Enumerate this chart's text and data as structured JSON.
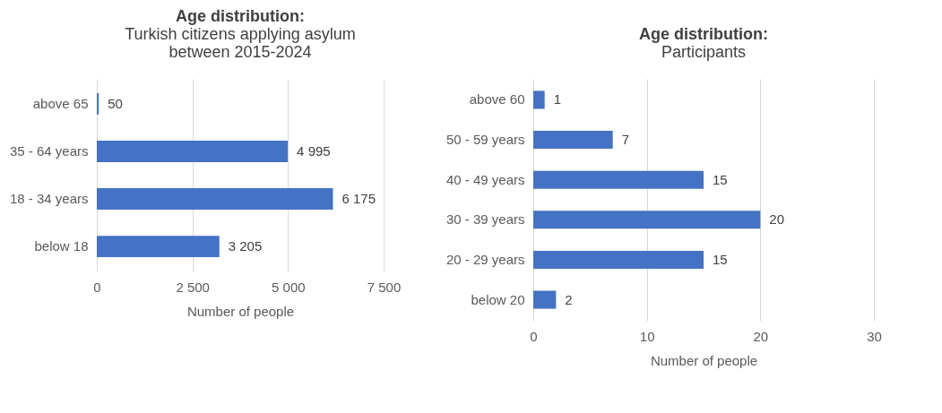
{
  "chart_data": [
    {
      "type": "bar",
      "orientation": "horizontal",
      "title": "Age distribution:",
      "subtitle": "Turkish citizens applying asylum between 2015-2024",
      "xlabel": "Number of people",
      "categories": [
        "above 65",
        "35 - 64 years",
        "18 - 34 years",
        "below 18"
      ],
      "values": [
        50,
        4995,
        6175,
        3205
      ],
      "value_labels": [
        "50",
        "4 995",
        "6 175",
        "3 205"
      ],
      "color": "#4472c4",
      "xlim": [
        0,
        7500
      ],
      "xticks": [
        0,
        {
          "value": 2500,
          "label": "2 500"
        },
        {
          "value": 5000,
          "label": "5 000"
        },
        {
          "value": 7500,
          "label": "7 500"
        }
      ],
      "grid": "x",
      "legend": false
    },
    {
      "type": "bar",
      "orientation": "horizontal",
      "title": "Age distribution:",
      "subtitle": "Participants",
      "xlabel": "Number of people",
      "categories": [
        "above 60",
        "50 - 59 years",
        "40 - 49 years",
        "30 - 39 years",
        "20 - 29 years",
        "below 20"
      ],
      "values": [
        1,
        7,
        15,
        20,
        15,
        2
      ],
      "data_labels": true,
      "color": "#4472c4",
      "xlim": [
        0,
        30
      ],
      "xticks": [
        0,
        10,
        20,
        30
      ],
      "grid": "x",
      "legend": false
    }
  ]
}
